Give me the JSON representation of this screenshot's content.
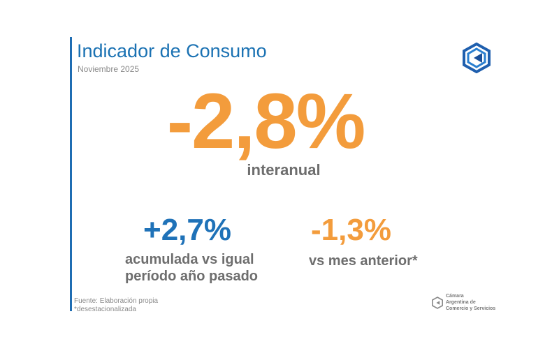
{
  "header": {
    "title": "Indicador de Consumo",
    "subtitle": "Noviembre 2025"
  },
  "main_stat": {
    "value": "-2,8%",
    "label": "interanual"
  },
  "stats": [
    {
      "value": "+2,7%",
      "label_line1": "acumulada vs igual",
      "label_line2": "período año pasado",
      "color": "#1f72b8"
    },
    {
      "value": "-1,3%",
      "label": "vs mes anterior*",
      "color": "#f39c3c"
    }
  ],
  "footer": {
    "source": "Fuente: Elaboración propia",
    "note": "*desestacionalizada"
  },
  "logo": {
    "icon": "cac-hexagon-logo",
    "line1": "Cámara",
    "line2": "Argentina de",
    "line3": "Comercio y Servicios"
  },
  "colors": {
    "primary_blue": "#1b72b3",
    "accent_orange": "#f39c3c"
  }
}
